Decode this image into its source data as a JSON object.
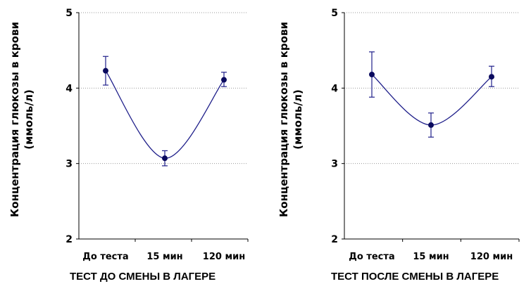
{
  "chart_data": [
    {
      "type": "line",
      "title": "",
      "caption": "ТЕСТ ДО СМЕНЫ В ЛАГЕРЕ",
      "ylabel_line1": "Концентрация глюкозы в крови",
      "ylabel_line2": "(ммоль/л)",
      "xlabel": "",
      "categories": [
        "До теста",
        "15 мин",
        "120 мин"
      ],
      "yticks": [
        "2",
        "3",
        "4",
        "5"
      ],
      "ylim": [
        2,
        5
      ],
      "grid": "horizontal dotted",
      "series": [
        {
          "values": [
            4.23,
            3.07,
            4.11
          ],
          "err_low": [
            4.04,
            2.97,
            4.02
          ],
          "err_high": [
            4.42,
            3.17,
            4.21
          ]
        }
      ],
      "color": "#1f1f8a"
    },
    {
      "type": "line",
      "title": "",
      "caption": "ТЕСТ ПОСЛЕ СМЕНЫ В ЛАГЕРЕ",
      "ylabel_line1": "Концентрация глюкозы в крови",
      "ylabel_line2": "(ммоль/л)",
      "xlabel": "",
      "categories": [
        "До теста",
        "15 мин",
        "120 мин"
      ],
      "yticks": [
        "2",
        "3",
        "4",
        "5"
      ],
      "ylim": [
        2,
        5
      ],
      "grid": "horizontal dotted",
      "series": [
        {
          "values": [
            4.18,
            3.51,
            4.15
          ],
          "err_low": [
            3.88,
            3.35,
            4.02
          ],
          "err_high": [
            4.48,
            3.67,
            4.29
          ]
        }
      ],
      "color": "#1f1f8a"
    }
  ]
}
